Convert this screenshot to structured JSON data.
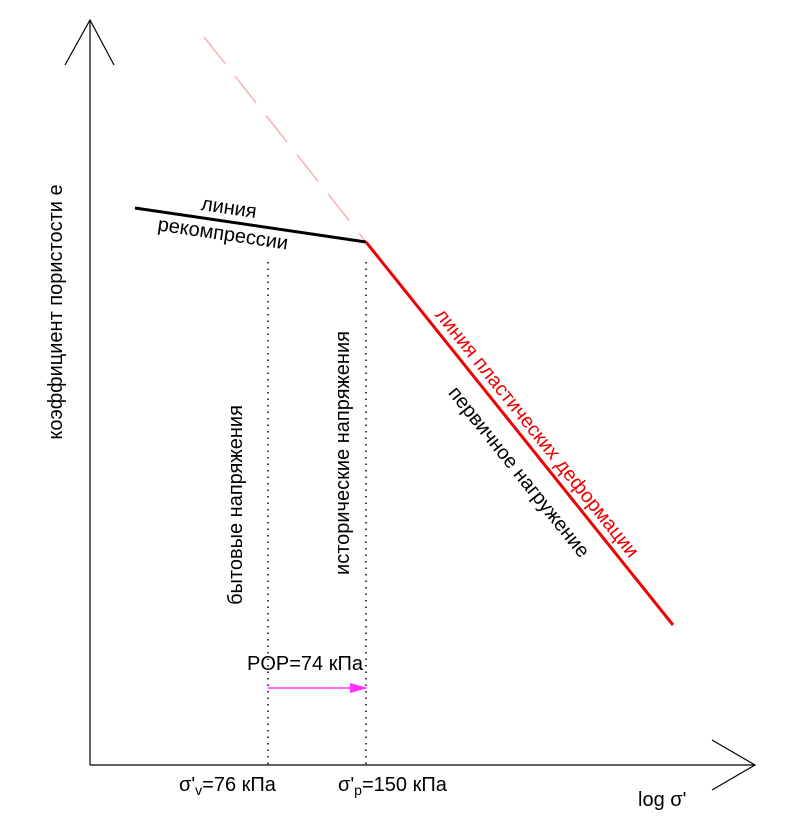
{
  "axes": {
    "y_label": "коэффициент пористости е",
    "x_label": "log  σ'"
  },
  "lines": {
    "recompression": {
      "label_line1": "линия",
      "label_line2": "рекомпрессии",
      "color": "#000000"
    },
    "plastic": {
      "label": "линия пластических деформации",
      "color": "#ee0000"
    },
    "virgin": {
      "label": "первичное нагружение"
    },
    "extension_color": "#f4b6b6"
  },
  "verticals": {
    "in_situ": {
      "label": "бытовые напряжения"
    },
    "historic": {
      "label": "исторические напряжения"
    }
  },
  "pop": {
    "label": "POP=74 кПа",
    "arrow_color": "#ff33ff"
  },
  "ticks": {
    "sigma_v": {
      "prefix": "σ'",
      "sub": "v",
      "suffix": "=76 кПа"
    },
    "sigma_p": {
      "prefix": "σ'",
      "sub": "p",
      "suffix": "=150 кПа"
    }
  }
}
